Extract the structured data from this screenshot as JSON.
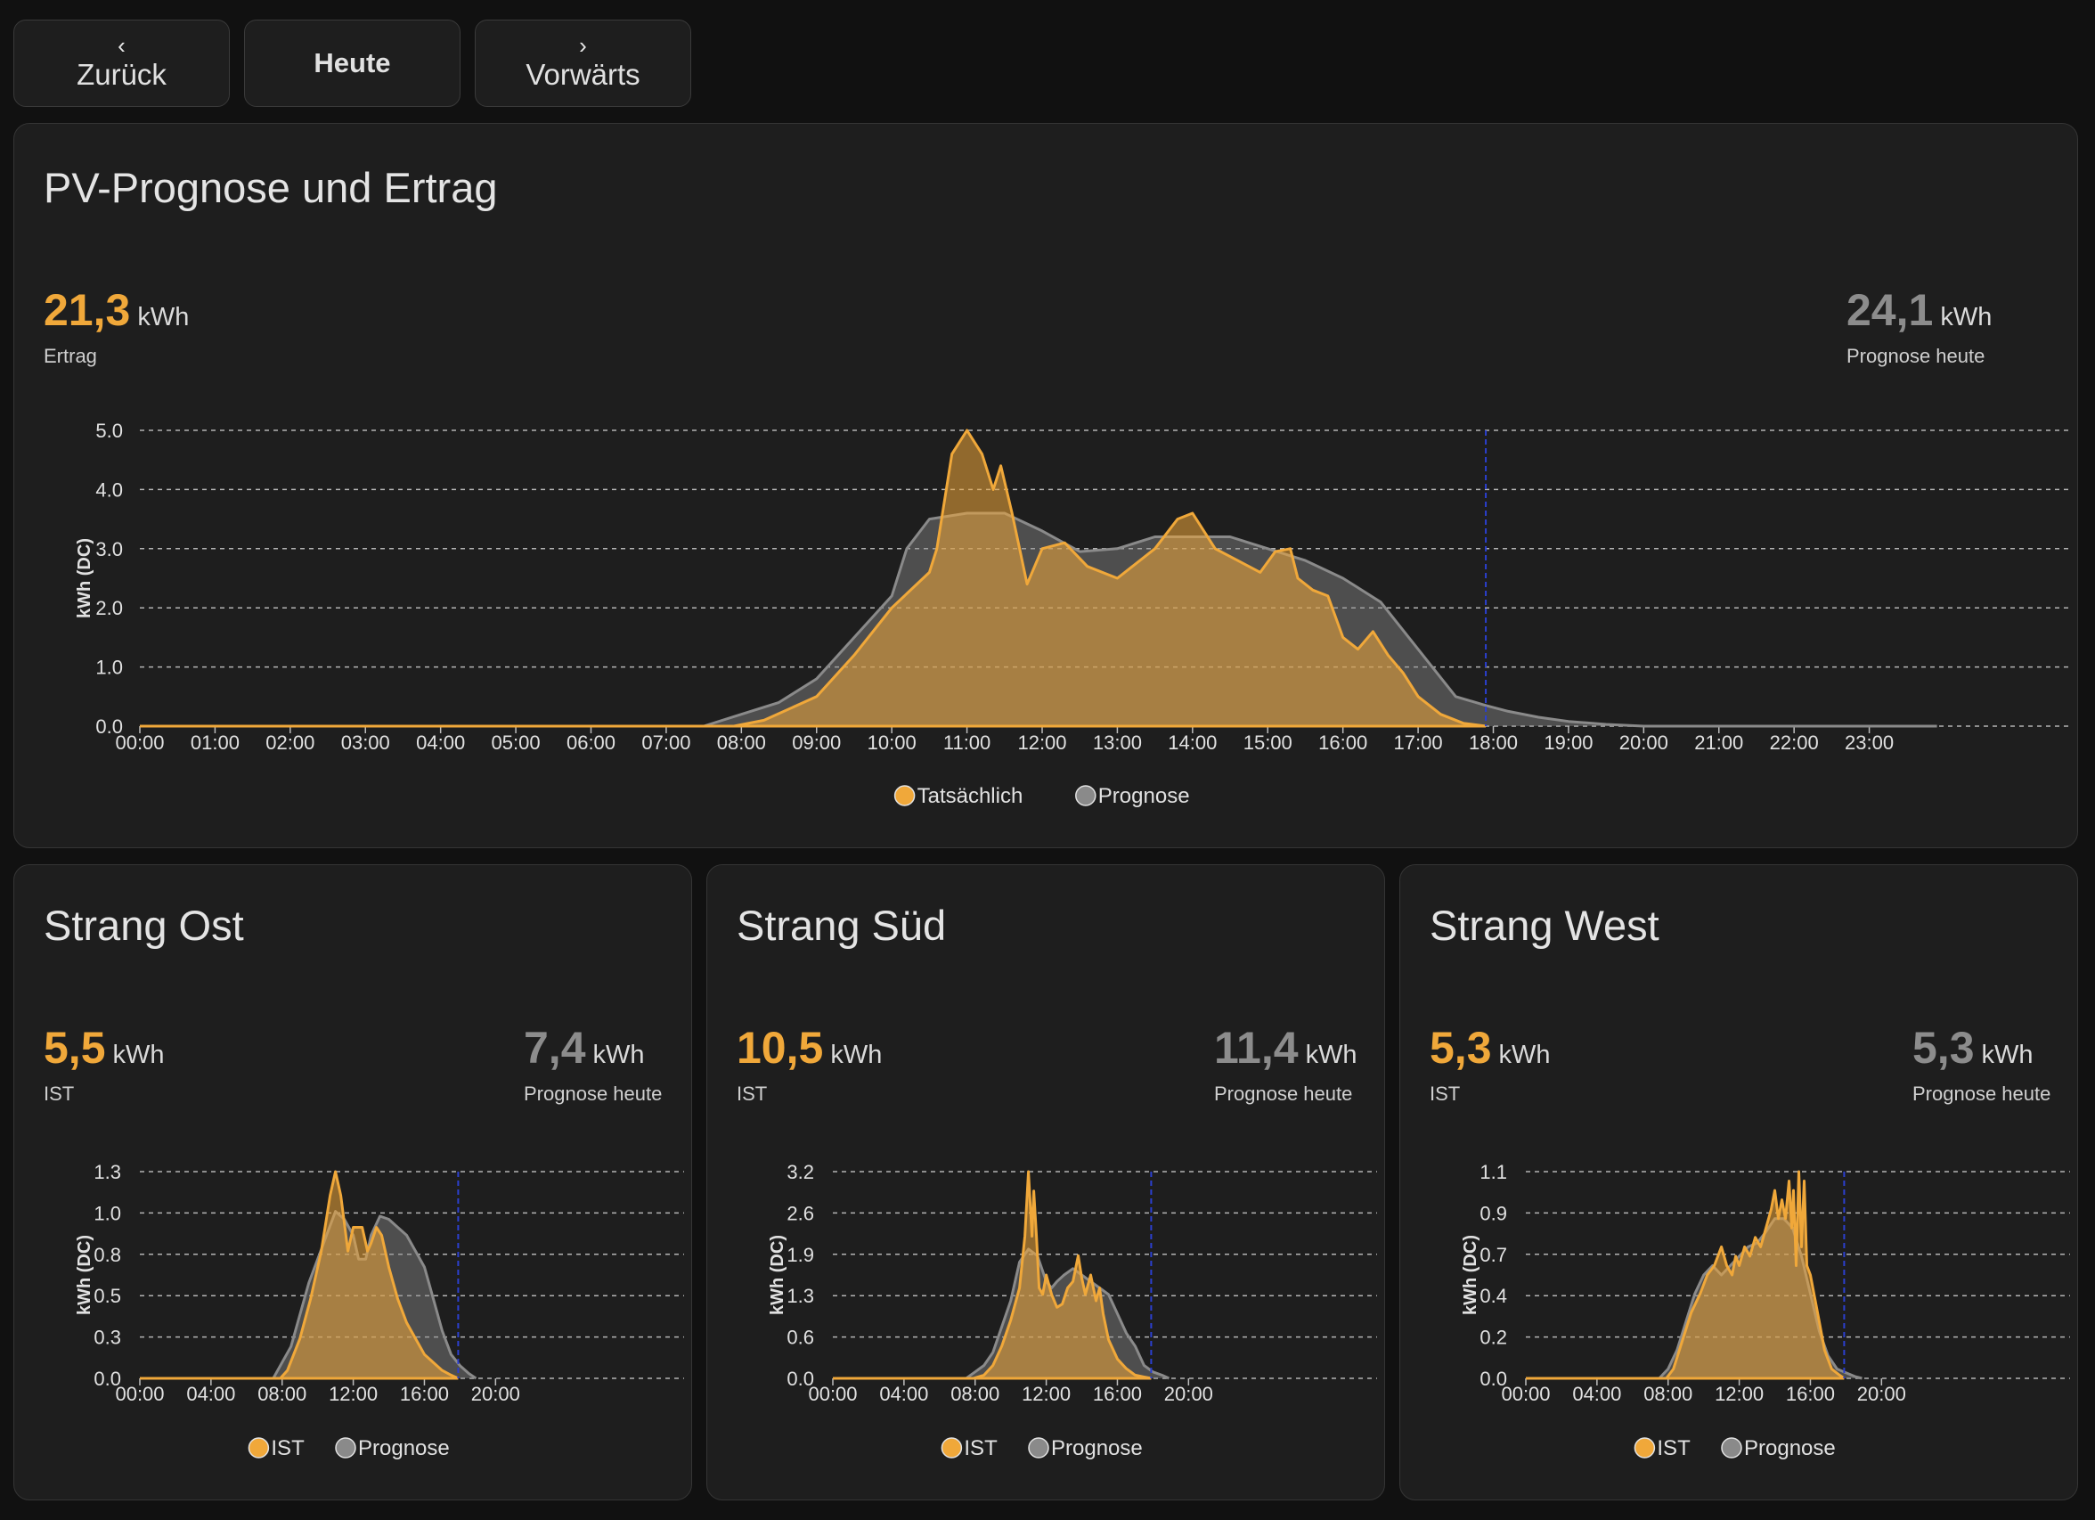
{
  "nav": {
    "back": {
      "icon": "chevron-left-icon",
      "glyph": "‹",
      "label": "Zurück"
    },
    "today": {
      "label": "Heute"
    },
    "forward": {
      "icon": "chevron-right-icon",
      "glyph": "›",
      "label": "Vorwärts"
    }
  },
  "colors": {
    "actual": "#f0a83a",
    "forecast": "#8a8a8a",
    "now_line": "#2b3fcf"
  },
  "main": {
    "title": "PV-Prognose und Ertrag",
    "actual": {
      "value": "21,3",
      "unit": "kWh",
      "caption": "Ertrag"
    },
    "forecast": {
      "value": "24,1",
      "unit": "kWh",
      "caption": "Prognose heute"
    },
    "legend": [
      "Tatsächlich",
      "Prognose"
    ]
  },
  "strings": [
    {
      "title": "Strang Ost",
      "actual": {
        "value": "5,5",
        "unit": "kWh",
        "caption": "IST"
      },
      "forecast": {
        "value": "7,4",
        "unit": "kWh",
        "caption": "Prognose heute"
      },
      "legend": [
        "IST",
        "Prognose"
      ]
    },
    {
      "title": "Strang Süd",
      "actual": {
        "value": "10,5",
        "unit": "kWh",
        "caption": "IST"
      },
      "forecast": {
        "value": "11,4",
        "unit": "kWh",
        "caption": "Prognose heute"
      },
      "legend": [
        "IST",
        "Prognose"
      ]
    },
    {
      "title": "Strang West",
      "actual": {
        "value": "5,3",
        "unit": "kWh",
        "caption": "IST"
      },
      "forecast": {
        "value": "5,3",
        "unit": "kWh",
        "caption": "Prognose heute"
      },
      "legend": [
        "IST",
        "Prognose"
      ]
    }
  ],
  "chart_data": [
    {
      "type": "area",
      "ylabel": "kWh (DC)",
      "ylim": [
        0,
        5
      ],
      "yticks": [
        "0.0",
        "1.0",
        "2.0",
        "3.0",
        "4.0",
        "5.0"
      ],
      "ytick_values": [
        0,
        1,
        2,
        3,
        4,
        5
      ],
      "xlim": [
        0,
        24
      ],
      "xticks": [
        "00:00",
        "01:00",
        "02:00",
        "03:00",
        "04:00",
        "05:00",
        "06:00",
        "07:00",
        "08:00",
        "09:00",
        "10:00",
        "11:00",
        "12:00",
        "13:00",
        "14:00",
        "15:00",
        "16:00",
        "17:00",
        "18:00",
        "19:00",
        "20:00",
        "21:00",
        "22:00",
        "23:00"
      ],
      "xtick_values": [
        0,
        1,
        2,
        3,
        4,
        5,
        6,
        7,
        8,
        9,
        10,
        11,
        12,
        13,
        14,
        15,
        16,
        17,
        18,
        19,
        20,
        21,
        22,
        23
      ],
      "now": 17.9,
      "series": [
        {
          "name": "Tatsächlich",
          "x": [
            0,
            7.9,
            8.3,
            9.0,
            9.5,
            10.0,
            10.5,
            10.6,
            10.8,
            11.0,
            11.2,
            11.35,
            11.45,
            11.6,
            11.8,
            12.0,
            12.3,
            12.6,
            13.0,
            13.5,
            13.8,
            14.0,
            14.3,
            14.6,
            14.9,
            15.1,
            15.3,
            15.4,
            15.6,
            15.8,
            16.0,
            16.2,
            16.4,
            16.6,
            16.8,
            17.0,
            17.3,
            17.6,
            17.9
          ],
          "y": [
            0,
            0,
            0.1,
            0.5,
            1.2,
            2.0,
            2.6,
            3.0,
            4.6,
            5.0,
            4.6,
            4.0,
            4.4,
            3.6,
            2.4,
            3.0,
            3.1,
            2.7,
            2.5,
            3.0,
            3.5,
            3.6,
            3.0,
            2.8,
            2.6,
            2.95,
            3.0,
            2.5,
            2.3,
            2.2,
            1.5,
            1.3,
            1.6,
            1.2,
            0.9,
            0.5,
            0.2,
            0.05,
            0
          ]
        },
        {
          "name": "Prognose",
          "x": [
            0,
            7.5,
            8.0,
            8.5,
            9.0,
            9.5,
            10.0,
            10.2,
            10.5,
            11.0,
            11.5,
            12.0,
            12.5,
            13.0,
            13.5,
            14.0,
            14.5,
            15.0,
            15.5,
            16.0,
            16.5,
            17.0,
            17.5,
            17.9,
            18.2,
            18.6,
            19.0,
            19.5,
            20.0,
            23.9
          ],
          "y": [
            0,
            0,
            0.2,
            0.4,
            0.8,
            1.5,
            2.2,
            3.0,
            3.5,
            3.6,
            3.6,
            3.3,
            2.95,
            3.0,
            3.2,
            3.2,
            3.2,
            3.0,
            2.8,
            2.5,
            2.1,
            1.3,
            0.5,
            0.35,
            0.25,
            0.15,
            0.08,
            0.03,
            0,
            0
          ]
        }
      ]
    },
    {
      "type": "area",
      "ylabel": "kWh (DC)",
      "ylim": [
        0,
        1.3
      ],
      "yticks": [
        "0.0",
        "0.3",
        "0.5",
        "0.8",
        "1.0",
        "1.3"
      ],
      "ytick_values": [
        0,
        0.26,
        0.52,
        0.78,
        1.04,
        1.3
      ],
      "xlim": [
        0,
        24
      ],
      "xticks": [
        "00:00",
        "04:00",
        "08:00",
        "12:00",
        "16:00",
        "20:00"
      ],
      "xtick_values": [
        0,
        4,
        8,
        12,
        16,
        20
      ],
      "now": 17.9,
      "series": [
        {
          "name": "IST",
          "x": [
            0,
            7.9,
            8.3,
            9.0,
            9.6,
            10.2,
            10.7,
            11.0,
            11.3,
            11.7,
            12.0,
            12.2,
            12.5,
            12.8,
            13.0,
            13.3,
            13.6,
            14.0,
            14.5,
            15.0,
            15.5,
            16.0,
            16.5,
            17.0,
            17.5,
            17.9
          ],
          "y": [
            0,
            0,
            0.05,
            0.25,
            0.5,
            0.8,
            1.15,
            1.3,
            1.15,
            0.8,
            0.95,
            0.95,
            0.95,
            0.8,
            0.85,
            0.95,
            0.9,
            0.7,
            0.5,
            0.35,
            0.25,
            0.15,
            0.1,
            0.05,
            0.02,
            0
          ]
        },
        {
          "name": "Prognose",
          "x": [
            0,
            7.5,
            8.0,
            8.5,
            9.0,
            9.5,
            10.0,
            10.5,
            11.0,
            11.5,
            12.0,
            12.3,
            12.7,
            13.0,
            13.5,
            14.0,
            14.5,
            15.0,
            15.5,
            16.0,
            16.5,
            17.0,
            17.5,
            18.0,
            18.5,
            18.9
          ],
          "y": [
            0,
            0,
            0.1,
            0.2,
            0.4,
            0.6,
            0.75,
            0.9,
            1.05,
            1.0,
            0.9,
            0.75,
            0.75,
            0.9,
            1.02,
            1.0,
            0.95,
            0.9,
            0.8,
            0.7,
            0.5,
            0.3,
            0.15,
            0.08,
            0.03,
            0
          ]
        }
      ]
    },
    {
      "type": "area",
      "ylabel": "kWh (DC)",
      "ylim": [
        0,
        3.2
      ],
      "yticks": [
        "0.0",
        "0.6",
        "1.3",
        "1.9",
        "2.6",
        "3.2"
      ],
      "ytick_values": [
        0,
        0.64,
        1.28,
        1.92,
        2.56,
        3.2
      ],
      "xlim": [
        0,
        24
      ],
      "xticks": [
        "00:00",
        "04:00",
        "08:00",
        "12:00",
        "16:00",
        "20:00"
      ],
      "xtick_values": [
        0,
        4,
        8,
        12,
        16,
        20
      ],
      "now": 17.9,
      "series": [
        {
          "name": "IST",
          "x": [
            0,
            7.9,
            8.5,
            9.0,
            9.5,
            10.0,
            10.5,
            10.8,
            11.0,
            11.1,
            11.2,
            11.3,
            11.45,
            11.6,
            11.8,
            12.0,
            12.3,
            12.6,
            12.9,
            13.2,
            13.5,
            13.8,
            14.0,
            14.2,
            14.5,
            14.8,
            15.0,
            15.2,
            15.5,
            16.0,
            16.5,
            17.0,
            17.5,
            17.9
          ],
          "y": [
            0,
            0,
            0.05,
            0.2,
            0.5,
            0.9,
            1.4,
            2.2,
            3.2,
            2.7,
            2.2,
            2.9,
            2.2,
            1.4,
            1.3,
            1.6,
            1.3,
            1.1,
            1.15,
            1.4,
            1.5,
            1.9,
            1.55,
            1.3,
            1.6,
            1.2,
            1.4,
            1.0,
            0.6,
            0.3,
            0.15,
            0.05,
            0.02,
            0
          ]
        },
        {
          "name": "Prognose",
          "x": [
            0,
            7.5,
            8.0,
            8.5,
            9.0,
            9.5,
            10.0,
            10.5,
            11.0,
            11.5,
            12.0,
            12.3,
            12.6,
            13.0,
            13.5,
            14.0,
            14.5,
            15.0,
            15.5,
            16.0,
            16.5,
            17.0,
            17.5,
            18.0,
            18.5,
            18.9
          ],
          "y": [
            0,
            0,
            0.1,
            0.2,
            0.4,
            0.8,
            1.2,
            1.8,
            2.0,
            1.9,
            1.5,
            1.4,
            1.5,
            1.6,
            1.7,
            1.6,
            1.5,
            1.4,
            1.3,
            1.0,
            0.7,
            0.5,
            0.2,
            0.1,
            0.05,
            0
          ]
        }
      ]
    },
    {
      "type": "area",
      "ylabel": "kWh (DC)",
      "ylim": [
        0,
        1.1
      ],
      "yticks": [
        "0.0",
        "0.2",
        "0.4",
        "0.7",
        "0.9",
        "1.1"
      ],
      "ytick_values": [
        0,
        0.22,
        0.44,
        0.66,
        0.88,
        1.1
      ],
      "xlim": [
        0,
        24
      ],
      "xticks": [
        "00:00",
        "04:00",
        "08:00",
        "12:00",
        "16:00",
        "20:00"
      ],
      "xtick_values": [
        0,
        4,
        8,
        12,
        16,
        20
      ],
      "now": 17.9,
      "series": [
        {
          "name": "IST",
          "x": [
            0,
            7.9,
            8.3,
            8.8,
            9.3,
            9.8,
            10.2,
            10.6,
            11.0,
            11.3,
            11.6,
            11.8,
            12.0,
            12.3,
            12.6,
            12.9,
            13.2,
            13.5,
            13.8,
            14.0,
            14.2,
            14.4,
            14.6,
            14.8,
            14.95,
            15.05,
            15.2,
            15.35,
            15.5,
            15.65,
            15.8,
            16.0,
            16.2,
            16.5,
            16.8,
            17.2,
            17.6,
            17.9
          ],
          "y": [
            0,
            0,
            0.05,
            0.2,
            0.35,
            0.45,
            0.55,
            0.6,
            0.7,
            0.6,
            0.55,
            0.65,
            0.6,
            0.7,
            0.65,
            0.75,
            0.7,
            0.8,
            0.9,
            1.0,
            0.85,
            0.95,
            0.85,
            1.05,
            0.8,
            1.0,
            0.6,
            1.1,
            0.7,
            1.05,
            0.6,
            0.55,
            0.45,
            0.3,
            0.15,
            0.05,
            0.02,
            0
          ]
        },
        {
          "name": "Prognose",
          "x": [
            0,
            7.5,
            8.0,
            8.5,
            9.0,
            9.5,
            10.0,
            10.5,
            11.0,
            11.5,
            12.0,
            12.5,
            13.0,
            13.5,
            14.0,
            14.5,
            15.0,
            15.5,
            16.0,
            16.5,
            17.0,
            17.5,
            18.0,
            18.5,
            18.9
          ],
          "y": [
            0,
            0,
            0.05,
            0.15,
            0.3,
            0.45,
            0.55,
            0.6,
            0.55,
            0.6,
            0.65,
            0.7,
            0.72,
            0.78,
            0.85,
            0.85,
            0.8,
            0.65,
            0.45,
            0.25,
            0.12,
            0.05,
            0.03,
            0.01,
            0
          ]
        }
      ]
    }
  ]
}
